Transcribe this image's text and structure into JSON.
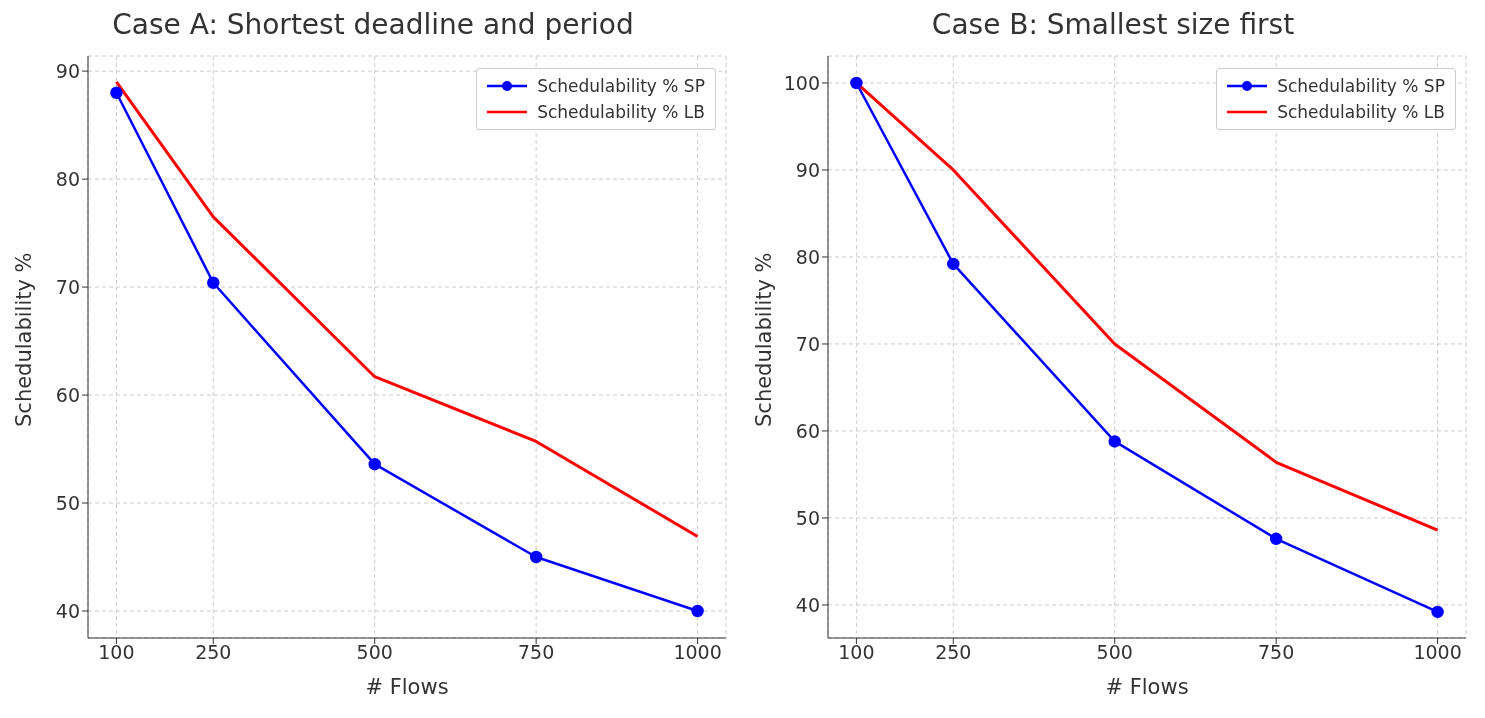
{
  "chart_data": [
    {
      "type": "line",
      "title": "Case A: Shortest deadline and period",
      "xlabel": "# Flows",
      "ylabel": "Schedulability %",
      "x": [
        100,
        250,
        500,
        750,
        1000
      ],
      "xlim": [
        56,
        1044
      ],
      "xticks": [
        100,
        250,
        500,
        750,
        1000
      ],
      "ylim": [
        37.5,
        91.4
      ],
      "yticks": [
        40,
        50,
        60,
        70,
        80,
        90
      ],
      "grid": true,
      "legend": "top right",
      "series": [
        {
          "name": "Schedulability % SP",
          "color": "#0000ff",
          "marker": "circle",
          "values": [
            88,
            70.4,
            53.6,
            45,
            40
          ]
        },
        {
          "name": "Schedulability % LB",
          "color": "#ff0000",
          "marker": "none",
          "values": [
            89,
            76.5,
            61.7,
            55.7,
            46.9
          ]
        }
      ]
    },
    {
      "type": "line",
      "title": "Case B: Smallest size first",
      "xlabel": "# Flows",
      "ylabel": "Schedulability %",
      "x": [
        100,
        250,
        500,
        750,
        1000
      ],
      "xlim": [
        56,
        1044
      ],
      "xticks": [
        100,
        250,
        500,
        750,
        1000
      ],
      "ylim": [
        36.2,
        103.1
      ],
      "yticks": [
        40,
        50,
        60,
        70,
        80,
        90,
        100
      ],
      "grid": true,
      "legend": "top right",
      "series": [
        {
          "name": "Schedulability % SP",
          "color": "#0000ff",
          "marker": "circle",
          "values": [
            100,
            79.2,
            58.8,
            47.6,
            39.2
          ]
        },
        {
          "name": "Schedulability % LB",
          "color": "#ff0000",
          "marker": "none",
          "values": [
            100,
            90,
            70,
            56.4,
            48.6
          ]
        }
      ]
    }
  ]
}
